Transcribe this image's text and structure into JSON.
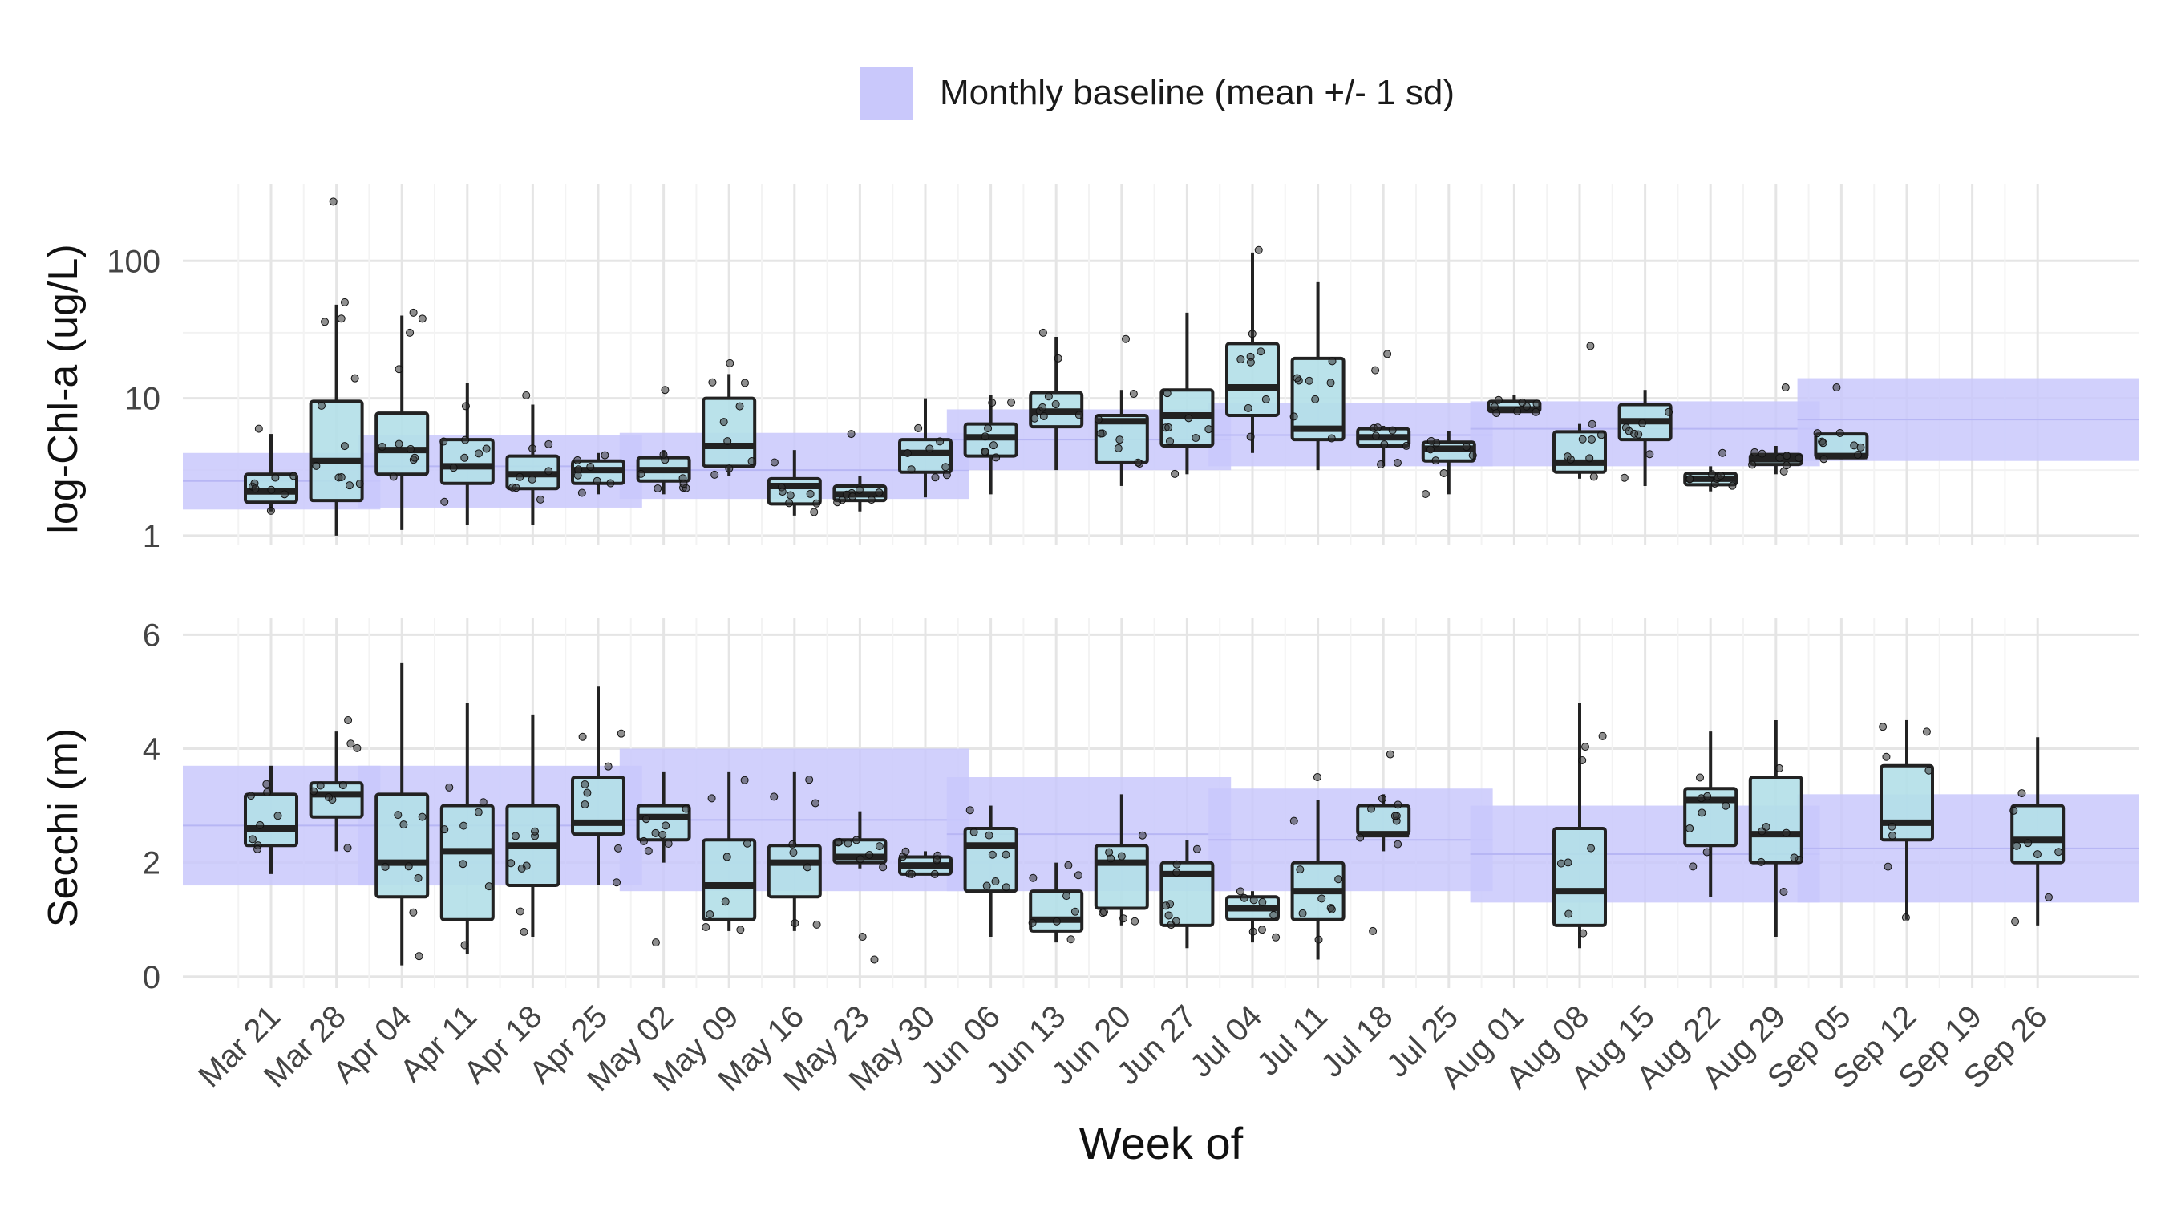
{
  "legend": {
    "label": "Monthly baseline (mean +/- 1 sd)",
    "swatch_color": "#c9c8fb"
  },
  "x_axis": {
    "title": "Week of",
    "tick_labels": [
      "Mar 21",
      "Mar 28",
      "Apr 04",
      "Apr 11",
      "Apr 18",
      "Apr 25",
      "May 02",
      "May 09",
      "May 16",
      "May 23",
      "May 30",
      "Jun 06",
      "Jun 13",
      "Jun 20",
      "Jun 27",
      "Jul 04",
      "Jul 11",
      "Jul 18",
      "Jul 25",
      "Aug 01",
      "Aug 08",
      "Aug 15",
      "Aug 22",
      "Aug 29",
      "Sep 05",
      "Sep 12",
      "Sep 19",
      "Sep 26"
    ]
  },
  "colors": {
    "box_fill": "#b3dfe8",
    "box_stroke": "#222222",
    "baseline_band": "#c9c8fb",
    "grid": "#e5e5e5",
    "point": "#333333"
  },
  "chart_data": [
    {
      "type": "box",
      "panel": "chlorophyll",
      "ylabel": "log-Chl-a (ug/L)",
      "y_scale": "log10",
      "ylim": [
        0.85,
        360
      ],
      "y_ticks": [
        1,
        10,
        100
      ],
      "y_tick_labels": [
        "1",
        "10",
        "100"
      ],
      "grid": true,
      "baseline": [
        {
          "month": "Mar",
          "weeks": [
            "Mar 21",
            "Mar 28"
          ],
          "mean": 2.5,
          "lo": 1.55,
          "hi": 4.0
        },
        {
          "month": "Apr",
          "weeks": [
            "Apr 04",
            "Apr 11",
            "Apr 18",
            "Apr 25"
          ],
          "mean": 3.2,
          "lo": 1.6,
          "hi": 5.4
        },
        {
          "month": "May",
          "weeks": [
            "May 02",
            "May 09",
            "May 16",
            "May 23",
            "May 30"
          ],
          "mean": 3.0,
          "lo": 1.85,
          "hi": 5.6
        },
        {
          "month": "Jun",
          "weeks": [
            "Jun 06",
            "Jun 13",
            "Jun 20",
            "Jun 27"
          ],
          "mean": 5.0,
          "lo": 3.0,
          "hi": 8.3
        },
        {
          "month": "Jul",
          "weeks": [
            "Jul 04",
            "Jul 11",
            "Jul 18",
            "Jul 25"
          ],
          "mean": 5.4,
          "lo": 3.2,
          "hi": 9.2
        },
        {
          "month": "Aug",
          "weeks": [
            "Aug 01",
            "Aug 08",
            "Aug 15",
            "Aug 22",
            "Aug 29"
          ],
          "mean": 6.0,
          "lo": 3.2,
          "hi": 9.5
        },
        {
          "month": "Sep",
          "weeks": [
            "Sep 05",
            "Sep 12",
            "Sep 19",
            "Sep 26"
          ],
          "mean": 7.0,
          "lo": 3.5,
          "hi": 14.0
        }
      ],
      "boxes": [
        {
          "week": "Mar 21",
          "min": 1.5,
          "q1": 1.75,
          "median": 2.1,
          "q3": 2.8,
          "max": 5.5,
          "outliers": [
            6.0
          ]
        },
        {
          "week": "Mar 28",
          "min": 1.0,
          "q1": 1.8,
          "median": 3.5,
          "q3": 9.5,
          "max": 48,
          "outliers": [
            270,
            50,
            38,
            36
          ]
        },
        {
          "week": "Apr 04",
          "min": 1.1,
          "q1": 2.8,
          "median": 4.2,
          "q3": 7.8,
          "max": 40,
          "outliers": [
            42,
            30
          ]
        },
        {
          "week": "Apr 11",
          "min": 1.2,
          "q1": 2.4,
          "median": 3.2,
          "q3": 5.0,
          "max": 13
        },
        {
          "week": "Apr 18",
          "min": 1.2,
          "q1": 2.2,
          "median": 2.8,
          "q3": 3.8,
          "max": 9.0,
          "outliers": [
            10.5
          ]
        },
        {
          "week": "Apr 25",
          "min": 2.0,
          "q1": 2.4,
          "median": 3.0,
          "q3": 3.5,
          "max": 4.0
        },
        {
          "week": "May 02",
          "min": 2.0,
          "q1": 2.5,
          "median": 3.0,
          "q3": 3.7,
          "max": 4.2,
          "outliers": [
            11.5
          ]
        },
        {
          "week": "May 09",
          "min": 2.7,
          "q1": 3.2,
          "median": 4.5,
          "q3": 10.0,
          "max": 15,
          "outliers": [
            18
          ]
        },
        {
          "week": "May 16",
          "min": 1.4,
          "q1": 1.7,
          "median": 2.3,
          "q3": 2.6,
          "max": 4.2
        },
        {
          "week": "May 23",
          "min": 1.5,
          "q1": 1.8,
          "median": 2.0,
          "q3": 2.3,
          "max": 2.7,
          "outliers": [
            5.5
          ]
        },
        {
          "week": "May 30",
          "min": 1.9,
          "q1": 2.9,
          "median": 4.0,
          "q3": 5.0,
          "max": 10.0
        },
        {
          "week": "Jun 06",
          "min": 2.0,
          "q1": 3.8,
          "median": 5.2,
          "q3": 6.5,
          "max": 10.5
        },
        {
          "week": "Jun 13",
          "min": 3.0,
          "q1": 6.2,
          "median": 8.0,
          "q3": 11.0,
          "max": 28,
          "outliers": [
            30
          ]
        },
        {
          "week": "Jun 20",
          "min": 2.3,
          "q1": 3.4,
          "median": 6.8,
          "q3": 7.5,
          "max": 11.5,
          "outliers": [
            27
          ]
        },
        {
          "week": "Jun 27",
          "min": 2.8,
          "q1": 4.5,
          "median": 7.5,
          "q3": 11.5,
          "max": 42
        },
        {
          "week": "Jul 04",
          "min": 4.0,
          "q1": 7.5,
          "median": 12.0,
          "q3": 25.0,
          "max": 115,
          "outliers": [
            120
          ]
        },
        {
          "week": "Jul 11",
          "min": 3.0,
          "q1": 5.0,
          "median": 6.0,
          "q3": 19.5,
          "max": 70
        },
        {
          "week": "Jul 18",
          "min": 3.2,
          "q1": 4.5,
          "median": 5.2,
          "q3": 6.0,
          "max": 6.3,
          "outliers": [
            21,
            16
          ]
        },
        {
          "week": "Jul 25",
          "min": 2.0,
          "q1": 3.5,
          "median": 4.3,
          "q3": 4.8,
          "max": 5.8
        },
        {
          "week": "Aug 01",
          "min": 7.8,
          "q1": 8.0,
          "median": 8.3,
          "q3": 9.5,
          "max": 10.5
        },
        {
          "week": "Aug 08",
          "min": 2.6,
          "q1": 2.9,
          "median": 3.4,
          "q3": 5.7,
          "max": 6.5,
          "outliers": [
            24
          ]
        },
        {
          "week": "Aug 15",
          "min": 2.3,
          "q1": 5.0,
          "median": 6.8,
          "q3": 9.0,
          "max": 11.5
        },
        {
          "week": "Aug 22",
          "min": 2.1,
          "q1": 2.35,
          "median": 2.6,
          "q3": 2.85,
          "max": 3.2,
          "outliers": [
            4.0
          ]
        },
        {
          "week": "Aug 29",
          "min": 2.8,
          "q1": 3.3,
          "median": 3.6,
          "q3": 3.9,
          "max": 4.5,
          "outliers": [
            12
          ]
        },
        {
          "week": "Sep 05",
          "min": 3.6,
          "q1": 3.7,
          "median": 3.8,
          "q3": 5.5,
          "max": 5.6,
          "outliers": [
            12
          ]
        }
      ]
    },
    {
      "type": "box",
      "panel": "secchi",
      "ylabel": "Secchi (m)",
      "y_scale": "linear",
      "ylim": [
        -0.2,
        6.3
      ],
      "y_ticks": [
        0,
        2,
        4,
        6
      ],
      "y_tick_labels": [
        "0",
        "2",
        "4",
        "6"
      ],
      "grid": true,
      "baseline": [
        {
          "month": "Mar",
          "weeks": [
            "Mar 21",
            "Mar 28"
          ],
          "mean": 2.65,
          "lo": 1.6,
          "hi": 3.7
        },
        {
          "month": "Apr",
          "weeks": [
            "Apr 04",
            "Apr 11",
            "Apr 18",
            "Apr 25"
          ],
          "mean": 2.65,
          "lo": 1.6,
          "hi": 3.7
        },
        {
          "month": "May",
          "weeks": [
            "May 02",
            "May 09",
            "May 16",
            "May 23",
            "May 30"
          ],
          "mean": 2.75,
          "lo": 1.5,
          "hi": 4.0
        },
        {
          "month": "Jun",
          "weeks": [
            "Jun 06",
            "Jun 13",
            "Jun 20",
            "Jun 27"
          ],
          "mean": 2.5,
          "lo": 1.5,
          "hi": 3.5
        },
        {
          "month": "Jul",
          "weeks": [
            "Jul 04",
            "Jul 11",
            "Jul 18",
            "Jul 25"
          ],
          "mean": 2.4,
          "lo": 1.5,
          "hi": 3.3
        },
        {
          "month": "Aug",
          "weeks": [
            "Aug 01",
            "Aug 08",
            "Aug 15",
            "Aug 22",
            "Aug 29"
          ],
          "mean": 2.15,
          "lo": 1.3,
          "hi": 3.0
        },
        {
          "month": "Sep",
          "weeks": [
            "Sep 05",
            "Sep 12",
            "Sep 19",
            "Sep 26"
          ],
          "mean": 2.25,
          "lo": 1.3,
          "hi": 3.2
        }
      ],
      "boxes": [
        {
          "week": "Mar 21",
          "min": 1.8,
          "q1": 2.3,
          "median": 2.6,
          "q3": 3.2,
          "max": 3.7
        },
        {
          "week": "Mar 28",
          "min": 2.2,
          "q1": 2.8,
          "median": 3.2,
          "q3": 3.4,
          "max": 4.3,
          "outliers": [
            4.5
          ]
        },
        {
          "week": "Apr 04",
          "min": 0.2,
          "q1": 1.4,
          "median": 2.0,
          "q3": 3.2,
          "max": 5.5
        },
        {
          "week": "Apr 11",
          "min": 0.4,
          "q1": 1.0,
          "median": 2.2,
          "q3": 3.0,
          "max": 4.8
        },
        {
          "week": "Apr 18",
          "min": 0.7,
          "q1": 1.6,
          "median": 2.3,
          "q3": 3.0,
          "max": 4.6
        },
        {
          "week": "Apr 25",
          "min": 1.6,
          "q1": 2.5,
          "median": 2.7,
          "q3": 3.5,
          "max": 5.1
        },
        {
          "week": "May 02",
          "min": 2.0,
          "q1": 2.4,
          "median": 2.8,
          "q3": 3.0,
          "max": 3.6,
          "outliers": [
            0.6
          ]
        },
        {
          "week": "May 09",
          "min": 0.8,
          "q1": 1.0,
          "median": 1.6,
          "q3": 2.4,
          "max": 3.6
        },
        {
          "week": "May 16",
          "min": 0.8,
          "q1": 1.4,
          "median": 2.0,
          "q3": 2.3,
          "max": 3.6
        },
        {
          "week": "May 23",
          "min": 1.9,
          "q1": 2.0,
          "median": 2.1,
          "q3": 2.4,
          "max": 2.9,
          "outliers": [
            0.3,
            0.7
          ]
        },
        {
          "week": "May 30",
          "min": 1.8,
          "q1": 1.8,
          "median": 1.95,
          "q3": 2.1,
          "max": 2.2
        },
        {
          "week": "Jun 06",
          "min": 0.7,
          "q1": 1.5,
          "median": 2.3,
          "q3": 2.6,
          "max": 3.0
        },
        {
          "week": "Jun 13",
          "min": 0.6,
          "q1": 0.8,
          "median": 1.0,
          "q3": 1.5,
          "max": 2.0
        },
        {
          "week": "Jun 20",
          "min": 0.9,
          "q1": 1.2,
          "median": 2.0,
          "q3": 2.3,
          "max": 3.2
        },
        {
          "week": "Jun 27",
          "min": 0.5,
          "q1": 0.9,
          "median": 1.8,
          "q3": 2.0,
          "max": 2.4
        },
        {
          "week": "Jul 04",
          "min": 0.6,
          "q1": 1.0,
          "median": 1.2,
          "q3": 1.4,
          "max": 1.5
        },
        {
          "week": "Jul 11",
          "min": 0.3,
          "q1": 1.0,
          "median": 1.5,
          "q3": 2.0,
          "max": 3.1,
          "outliers": [
            3.5
          ]
        },
        {
          "week": "Jul 18",
          "min": 2.2,
          "q1": 2.5,
          "median": 2.5,
          "q3": 3.0,
          "max": 3.2,
          "outliers": [
            0.8,
            3.9
          ]
        },
        {
          "week": "Aug 08",
          "min": 0.5,
          "q1": 0.9,
          "median": 1.5,
          "q3": 2.6,
          "max": 4.8
        },
        {
          "week": "Aug 22",
          "min": 1.4,
          "q1": 2.3,
          "median": 3.1,
          "q3": 3.3,
          "max": 4.3
        },
        {
          "week": "Aug 29",
          "min": 0.7,
          "q1": 2.0,
          "median": 2.5,
          "q3": 3.5,
          "max": 4.5
        },
        {
          "week": "Sep 12",
          "min": 1.0,
          "q1": 2.4,
          "median": 2.7,
          "q3": 3.7,
          "max": 4.5
        },
        {
          "week": "Sep 26",
          "min": 0.9,
          "q1": 2.0,
          "median": 2.4,
          "q3": 3.0,
          "max": 4.2
        }
      ]
    }
  ]
}
